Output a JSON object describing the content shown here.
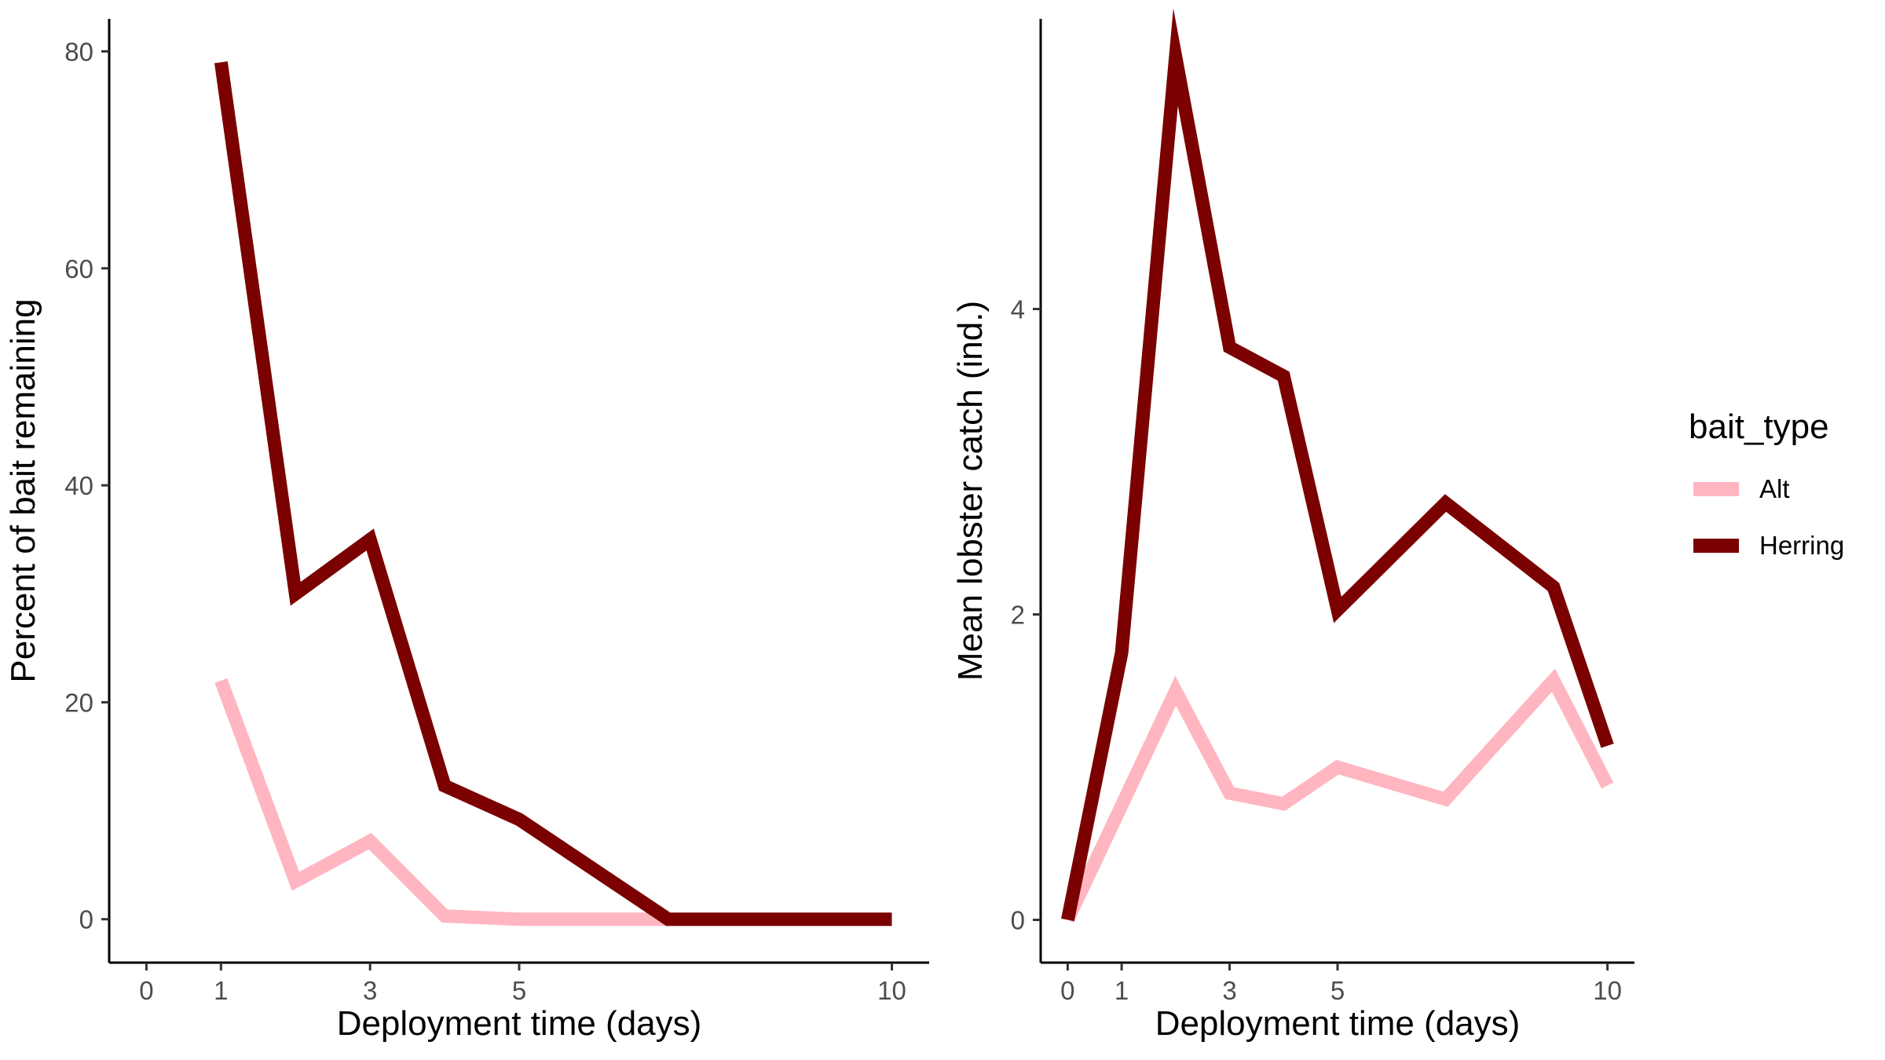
{
  "chart_data": [
    {
      "type": "line",
      "xlabel": "Deployment time (days)",
      "ylabel": "Percent of bait remaining",
      "xlim": [
        -0.5,
        10.5
      ],
      "ylim": [
        -4,
        83
      ],
      "xticks": [
        0,
        1,
        3,
        5,
        10
      ],
      "yticks": [
        0,
        20,
        40,
        60,
        80
      ],
      "grid": false,
      "series": [
        {
          "name": "Alt",
          "color": "#FFB6C1",
          "x": [
            1,
            2,
            3,
            4,
            5,
            7,
            8,
            9,
            10
          ],
          "y": [
            22,
            3.5,
            7.2,
            0.3,
            0,
            0,
            0,
            0,
            0
          ]
        },
        {
          "name": "Herring",
          "color": "#7B0000",
          "x": [
            1,
            2,
            3,
            4,
            5,
            7,
            8,
            9,
            10
          ],
          "y": [
            79,
            30,
            35,
            12.3,
            9.2,
            0,
            0,
            0,
            0
          ]
        }
      ]
    },
    {
      "type": "line",
      "xlabel": "Deployment time (days)",
      "ylabel": "Mean lobster catch (ind.)",
      "xlim": [
        -0.5,
        10.5
      ],
      "ylim": [
        -0.28,
        5.9
      ],
      "xticks": [
        0,
        1,
        3,
        5,
        10
      ],
      "yticks": [
        0,
        2,
        4
      ],
      "grid": false,
      "series": [
        {
          "name": "Alt",
          "color": "#FFB6C1",
          "x": [
            0,
            1,
            2,
            3,
            4,
            5,
            7,
            9,
            10
          ],
          "y": [
            0,
            0.75,
            1.5,
            0.83,
            0.76,
            1.0,
            0.79,
            1.57,
            0.88
          ]
        },
        {
          "name": "Herring",
          "color": "#7B0000",
          "x": [
            0,
            1,
            2,
            3,
            4,
            5,
            7,
            9,
            10
          ],
          "y": [
            0,
            1.75,
            5.65,
            3.75,
            3.56,
            2.03,
            2.73,
            2.18,
            1.14
          ]
        }
      ]
    }
  ],
  "legend": {
    "title": "bait_type",
    "items": [
      {
        "label": "Alt",
        "color": "#FFB6C1"
      },
      {
        "label": "Herring",
        "color": "#7B0000"
      }
    ]
  }
}
